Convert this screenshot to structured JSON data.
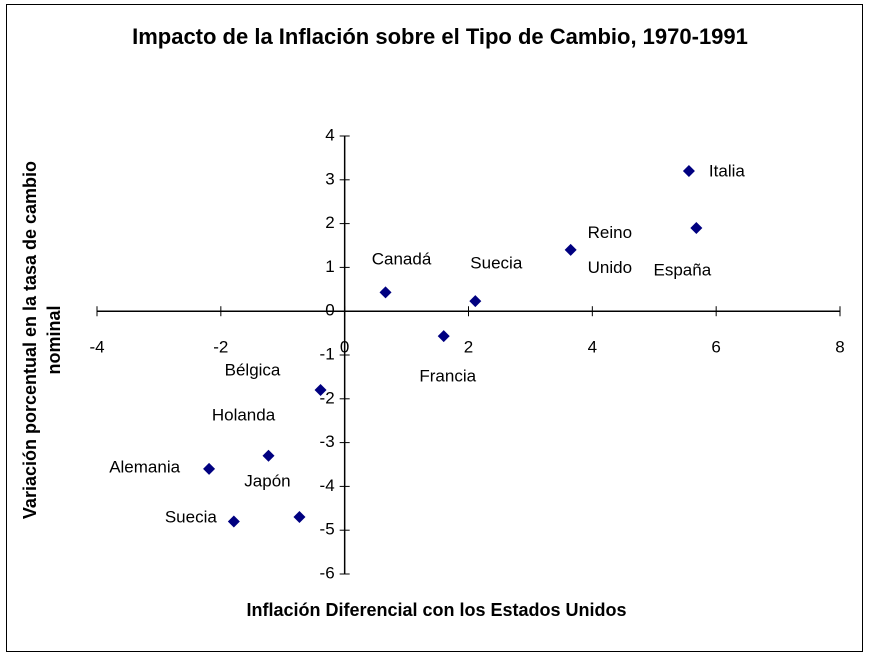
{
  "chart_data": {
    "type": "scatter",
    "title": "Impacto de la Inflación sobre el Tipo de Cambio, 1970-1991",
    "x_label": "Inflación Diferencial con los Estados Unidos",
    "y_label": "Variación porcentual en la tasa de cambio nominal",
    "labels": [
      "Italia",
      "España",
      "Reino Unido",
      "Suecia",
      "Canadá",
      "Francia",
      "Bélgica",
      "Holanda",
      "Alemania",
      "Japón",
      "Suecia"
    ],
    "x": [
      5.56,
      5.68,
      3.65,
      2.11,
      0.66,
      1.6,
      -0.39,
      -1.23,
      -2.19,
      -0.73,
      -1.79
    ],
    "values": [
      3.2,
      1.9,
      1.4,
      0.23,
      0.43,
      -0.57,
      -1.8,
      -3.3,
      -3.6,
      -4.7,
      -4.8
    ],
    "color": "#000080",
    "xlim": [
      -4,
      8
    ],
    "xticks": [
      -4,
      -2,
      0,
      2,
      4,
      6,
      8
    ],
    "ylim": [
      -6,
      4
    ],
    "yticks": [
      -6,
      -5,
      -4,
      -3,
      -2,
      -1,
      0,
      1,
      2,
      3,
      4
    ]
  }
}
